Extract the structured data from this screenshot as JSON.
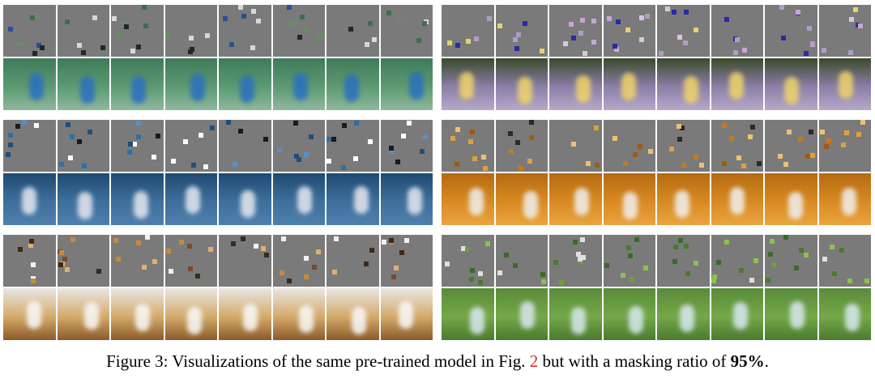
{
  "caption": {
    "prefix": "Figure 3: Visualizations of the same pre-trained model in Fig. ",
    "ref": "2",
    "middle": " but with a masking ratio of ",
    "ratio": "95%",
    "suffix": "."
  },
  "colors": {
    "masked_gray": "#7a7a7a",
    "figure_ref": "#d42a2a"
  },
  "figure": {
    "columns": 2,
    "rows_per_column": 3,
    "frames_per_example": 8,
    "examples": [
      {
        "id": "tennis-court",
        "patch_colors": [
          "#3e6e4e",
          "#1e2a22",
          "#d8d8d8",
          "#6b8a6a",
          "#2a4f9a"
        ],
        "frame_gradient": [
          "#3f7a58",
          "#5c9a73",
          "#8fb79c"
        ],
        "subject": "#2a6fc0"
      },
      {
        "id": "road-runner",
        "patch_colors": [
          "#c7a6d2",
          "#e6d36a",
          "#b09cc8",
          "#2a2aa8",
          "#d6c7e0"
        ],
        "frame_gradient": [
          "#3a4a2a",
          "#8b7fa8",
          "#b7a8c8"
        ],
        "subject": "#f0d46a"
      },
      {
        "id": "ocean-swimmer",
        "patch_colors": [
          "#2f6fa3",
          "#1a1a1a",
          "#ffffff",
          "#5a8fbf",
          "#1f4f7a"
        ],
        "frame_gradient": [
          "#1f4a72",
          "#3e6f9c",
          "#4f80ad"
        ],
        "subject": "#e8e8f0"
      },
      {
        "id": "gym-squat",
        "patch_colors": [
          "#e0a040",
          "#c47a1a",
          "#2a2a2a",
          "#f0c070",
          "#a05a10"
        ],
        "frame_gradient": [
          "#b46a12",
          "#d88a22",
          "#e9a440"
        ],
        "subject": "#f0f0f0"
      },
      {
        "id": "indoor-boxing",
        "patch_colors": [
          "#c58a3a",
          "#f0f0f0",
          "#3a2a1a",
          "#e0b070",
          "#7a4a2a"
        ],
        "frame_gradient": [
          "#e8e6e2",
          "#d4aa6a",
          "#8a5a2a"
        ],
        "subject": "#fafafa"
      },
      {
        "id": "grass-field",
        "patch_colors": [
          "#6aa03a",
          "#8ac24a",
          "#3a6a2a",
          "#e0e0e0",
          "#4a7a2a"
        ],
        "frame_gradient": [
          "#5a8a3a",
          "#74a848",
          "#4a7a30"
        ],
        "subject": "#d8e8f0"
      }
    ]
  }
}
